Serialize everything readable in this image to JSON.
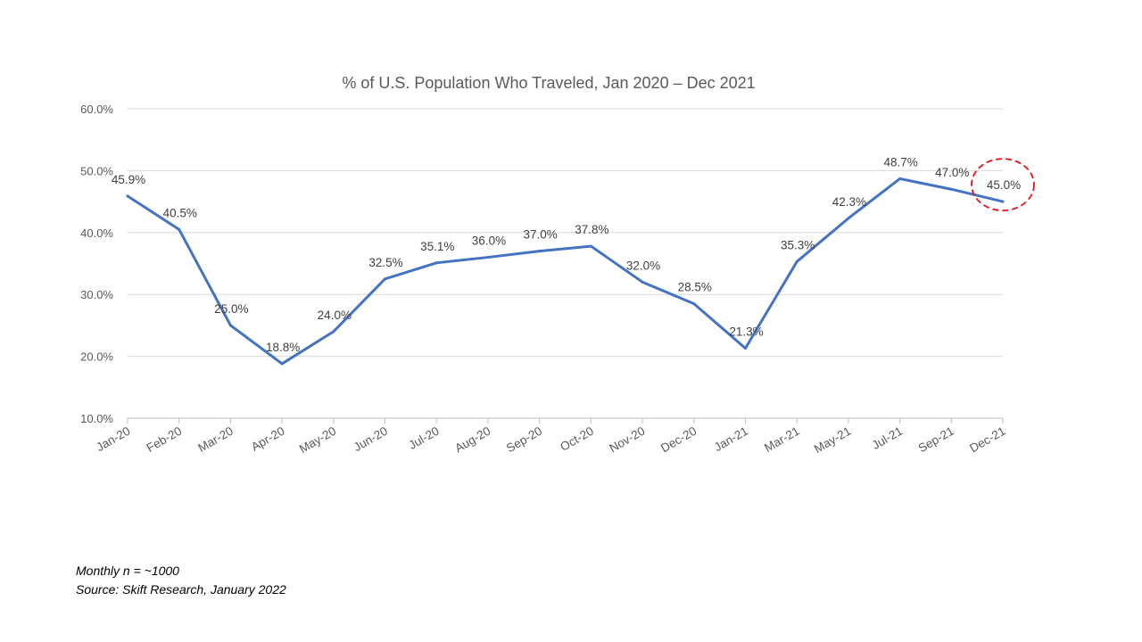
{
  "chart_data": {
    "type": "line",
    "title": "% of U.S. Population Who Traveled, Jan 2020 – Dec 2021",
    "xlabel": "",
    "ylabel": "",
    "categories": [
      "Jan-20",
      "Feb-20",
      "Mar-20",
      "Apr-20",
      "May-20",
      "Jun-20",
      "Jul-20",
      "Aug-20",
      "Sep-20",
      "Oct-20",
      "Nov-20",
      "Dec-20",
      "Jan-21",
      "Mar-21",
      "May-21",
      "Jul-21",
      "Sep-21",
      "Dec-21"
    ],
    "series": [
      {
        "values": [
          45.9,
          40.5,
          25.0,
          18.8,
          24.0,
          32.5,
          35.1,
          36.0,
          37.0,
          37.8,
          32.0,
          28.5,
          21.3,
          35.3,
          42.3,
          48.7,
          47.0,
          45.0
        ],
        "data_labels": [
          "45.9%",
          "40.5%",
          "25.0%",
          "18.8%",
          "24.0%",
          "32.5%",
          "35.1%",
          "36.0%",
          "37.0%",
          "37.8%",
          "32.0%",
          "28.5%",
          "21.3%",
          "35.3%",
          "42.3%",
          "48.7%",
          "47.0%",
          "45.0%"
        ]
      }
    ],
    "ylim": [
      10,
      60
    ],
    "yticks": [
      10,
      20,
      30,
      40,
      50,
      60
    ],
    "ytick_labels": [
      "10.0%",
      "20.0%",
      "30.0%",
      "40.0%",
      "50.0%",
      "60.0%"
    ],
    "grid": true,
    "legend": "none",
    "highlight": {
      "category": "Dec-21",
      "style": "red dashed circle"
    }
  },
  "colors": {
    "line": "#4472C4",
    "grid": "#d9d9d9",
    "axis": "#bfbfbf",
    "text": "#595959",
    "label": "#404040",
    "highlight": "#e8121b"
  },
  "footnotes": {
    "line1": "Monthly n = ~1000",
    "line2": "Source: Skift Research, January 2022"
  }
}
